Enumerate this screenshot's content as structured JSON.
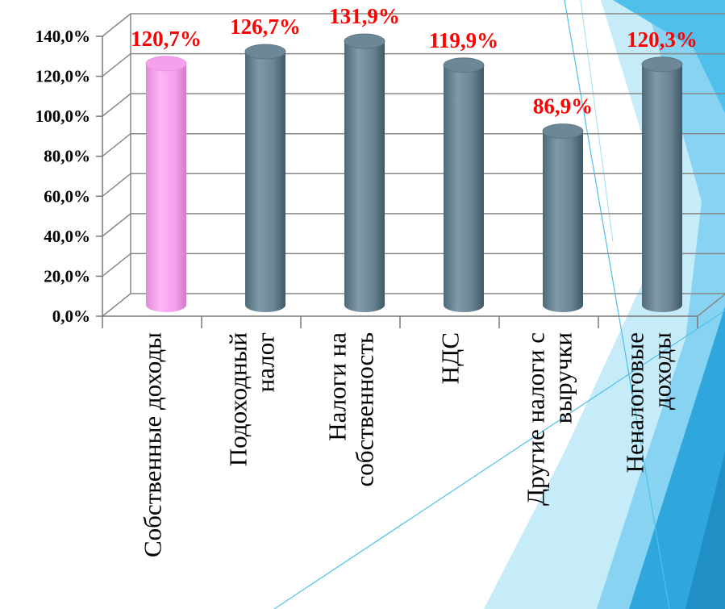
{
  "chart_data": {
    "type": "bar",
    "title": "",
    "xlabel": "",
    "ylabel": "",
    "ylim": [
      0,
      140
    ],
    "y_ticks": [
      "0,0%",
      "20,0%",
      "40,0%",
      "60,0%",
      "80,0%",
      "100,0%",
      "120,0%",
      "140,0%"
    ],
    "grid": true,
    "categories": [
      [
        "Собственные доходы"
      ],
      [
        "Подоходный",
        "налог"
      ],
      [
        "Налоги  на",
        "собственность"
      ],
      [
        "НДС"
      ],
      [
        "Другие налоги с",
        "выручки"
      ],
      [
        "Неналоговые",
        "доходы"
      ]
    ],
    "values": [
      120.7,
      126.7,
      131.9,
      119.9,
      86.9,
      120.3
    ],
    "data_labels": [
      "120,7%",
      "126,7%",
      "131,9%",
      "119,9%",
      "86,9%",
      "120,3%"
    ],
    "colors": {
      "highlight_bar": "#f9a6f0",
      "bar": "#6f8c9b",
      "data_label": "#ff0000",
      "grid": "#888888"
    }
  }
}
